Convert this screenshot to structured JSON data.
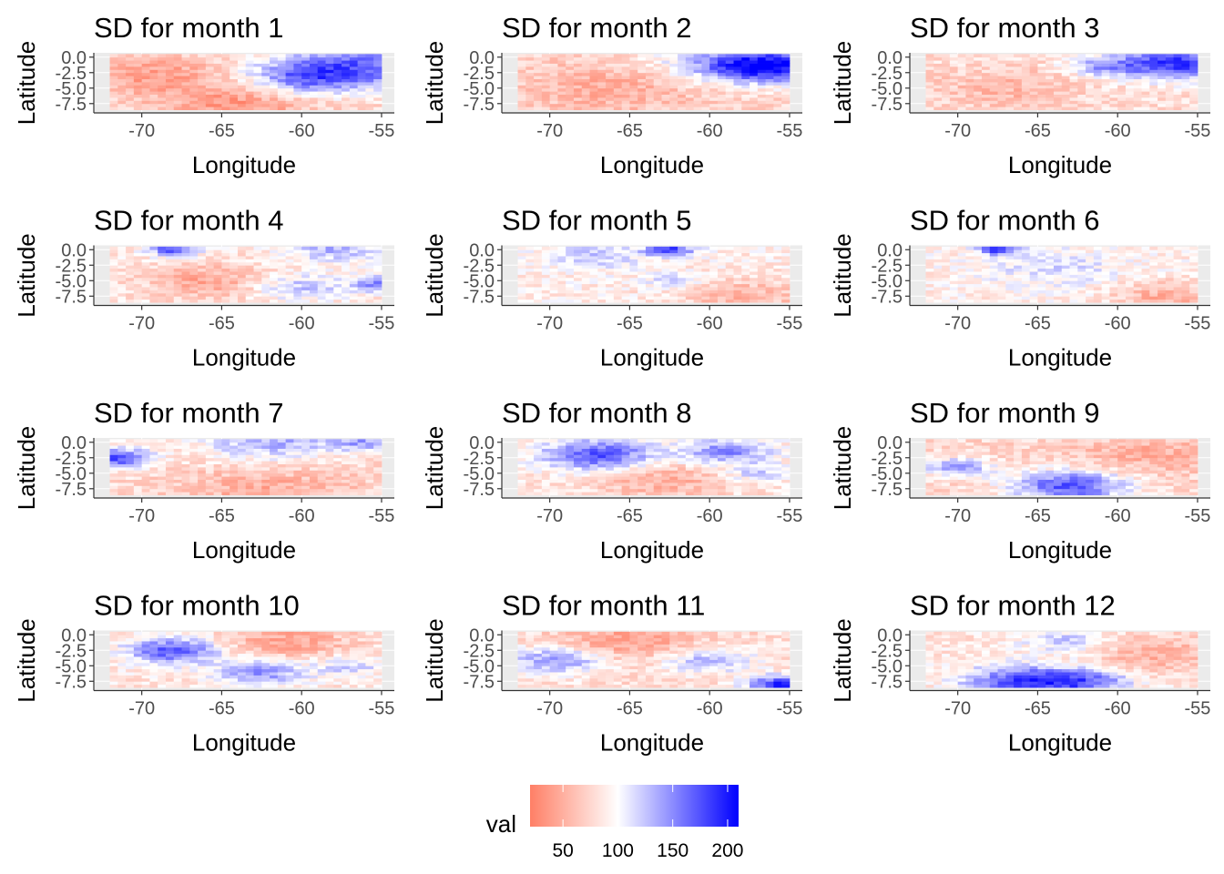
{
  "chart_data": {
    "type": "heatmap",
    "layout": "grid 4 rows x 3 columns",
    "colors": {
      "low": "#ff7f66",
      "mid": "#ffffff",
      "high": "#0000ff",
      "mid_value": 100
    },
    "grid": {
      "lon_from": -72,
      "lon_to": -55,
      "lat_from": -8.5,
      "lat_to": 0.5,
      "cell_size": 0.5,
      "cols": 34,
      "rows": 18
    },
    "xlim": [
      -73,
      -54.2
    ],
    "ylim": [
      -9,
      0.7
    ],
    "xticks": [
      "-70",
      "-65",
      "-60",
      "-55"
    ],
    "xtick_values": [
      -70,
      -65,
      -60,
      -55
    ],
    "yticks": [
      "0.0",
      "-2.5",
      "-5.0",
      "-7.5"
    ],
    "ytick_values": [
      0,
      -2.5,
      -5,
      -7.5
    ],
    "xlabel": "Longitude",
    "ylabel": "Latitude",
    "panels": [
      {
        "title": "SD for month 1",
        "base": 75,
        "blobs": [
          {
            "lon": -57,
            "lat": -1.5,
            "amp": 90,
            "r": 3.5
          },
          {
            "lon": -60,
            "lat": -3.5,
            "amp": 55,
            "r": 2.5
          },
          {
            "lon": -69,
            "lat": -3,
            "amp": -35,
            "r": 3
          },
          {
            "lon": -64,
            "lat": -7.5,
            "amp": -40,
            "r": 3
          }
        ]
      },
      {
        "title": "SD for month 2",
        "base": 75,
        "blobs": [
          {
            "lon": -56,
            "lat": -1.5,
            "amp": 110,
            "r": 2.5
          },
          {
            "lon": -59,
            "lat": -1,
            "amp": 60,
            "r": 3
          },
          {
            "lon": -66,
            "lat": -5,
            "amp": -25,
            "r": 4
          }
        ]
      },
      {
        "title": "SD for month 3",
        "base": 80,
        "blobs": [
          {
            "lon": -56.5,
            "lat": -1,
            "amp": 110,
            "r": 2.5
          },
          {
            "lon": -61,
            "lat": -1.5,
            "amp": 50,
            "r": 1.5
          },
          {
            "lon": -67,
            "lat": -5,
            "amp": -25,
            "r": 3
          }
        ]
      },
      {
        "title": "SD for month 4",
        "base": 85,
        "blobs": [
          {
            "lon": -68,
            "lat": 0,
            "amp": 95,
            "r": 1.0
          },
          {
            "lon": -55,
            "lat": -5.5,
            "amp": 75,
            "r": 1.2
          },
          {
            "lon": -58,
            "lat": 0,
            "amp": 45,
            "r": 2
          },
          {
            "lon": -66,
            "lat": -5,
            "amp": -40,
            "r": 2.5
          },
          {
            "lon": -60,
            "lat": -6,
            "amp": 40,
            "r": 2
          }
        ]
      },
      {
        "title": "SD for month 5",
        "base": 90,
        "blobs": [
          {
            "lon": -62.5,
            "lat": 0,
            "amp": 100,
            "r": 1.0
          },
          {
            "lon": -67,
            "lat": -1,
            "amp": 35,
            "r": 2
          },
          {
            "lon": -58,
            "lat": -7.5,
            "amp": -35,
            "r": 3
          },
          {
            "lon": -62,
            "lat": -5,
            "amp": 40,
            "r": 1.2
          }
        ]
      },
      {
        "title": "SD for month 6",
        "base": 90,
        "blobs": [
          {
            "lon": -67.5,
            "lat": 0,
            "amp": 95,
            "r": 0.8
          },
          {
            "lon": -57,
            "lat": -7.5,
            "amp": -40,
            "r": 2.5
          },
          {
            "lon": -64,
            "lat": -3,
            "amp": 25,
            "r": 3
          }
        ]
      },
      {
        "title": "SD for month 7",
        "base": 80,
        "blobs": [
          {
            "lon": -71.5,
            "lat": -2.5,
            "amp": 100,
            "r": 1.5
          },
          {
            "lon": -62,
            "lat": 0,
            "amp": 55,
            "r": 3
          },
          {
            "lon": -56,
            "lat": 0,
            "amp": 55,
            "r": 1.5
          },
          {
            "lon": -62,
            "lat": -7.5,
            "amp": -30,
            "r": 4
          }
        ]
      },
      {
        "title": "SD for month 8",
        "base": 85,
        "blobs": [
          {
            "lon": -67,
            "lat": -2,
            "amp": 90,
            "r": 2.5
          },
          {
            "lon": -59,
            "lat": -1.5,
            "amp": 65,
            "r": 2
          },
          {
            "lon": -57,
            "lat": -5,
            "amp": 35,
            "r": 1.5
          },
          {
            "lon": -63,
            "lat": -6,
            "amp": -35,
            "r": 3
          }
        ]
      },
      {
        "title": "SD for month 9",
        "base": 75,
        "blobs": [
          {
            "lon": -63,
            "lat": -7,
            "amp": 100,
            "r": 2.5
          },
          {
            "lon": -70,
            "lat": -4,
            "amp": 70,
            "r": 1.5
          },
          {
            "lon": -58,
            "lat": -2,
            "amp": -25,
            "r": 3
          }
        ]
      },
      {
        "title": "SD for month 10",
        "base": 85,
        "blobs": [
          {
            "lon": -68,
            "lat": -2.5,
            "amp": 90,
            "r": 2.0
          },
          {
            "lon": -62.5,
            "lat": -6,
            "amp": 60,
            "r": 2
          },
          {
            "lon": -61,
            "lat": -1,
            "amp": -40,
            "r": 3
          },
          {
            "lon": -57,
            "lat": -5,
            "amp": 40,
            "r": 1.5
          }
        ]
      },
      {
        "title": "SD for month 11",
        "base": 80,
        "blobs": [
          {
            "lon": -55.5,
            "lat": -8,
            "amp": 110,
            "r": 1.5
          },
          {
            "lon": -69.5,
            "lat": -4,
            "amp": 70,
            "r": 2
          },
          {
            "lon": -60,
            "lat": -4,
            "amp": 55,
            "r": 2
          },
          {
            "lon": -65,
            "lat": -1,
            "amp": -40,
            "r": 3
          }
        ]
      },
      {
        "title": "SD for month 12",
        "base": 85,
        "blobs": [
          {
            "lon": -66,
            "lat": -7.5,
            "amp": 95,
            "r": 2.5
          },
          {
            "lon": -62,
            "lat": -7.5,
            "amp": 70,
            "r": 2
          },
          {
            "lon": -63,
            "lat": -1,
            "amp": 40,
            "r": 2
          },
          {
            "lon": -58,
            "lat": -3,
            "amp": -35,
            "r": 3
          }
        ]
      }
    ],
    "legend": {
      "title": "val",
      "position": "bottom",
      "range": [
        20,
        210
      ],
      "ticks": [
        "50",
        "100",
        "150",
        "200"
      ],
      "tick_values": [
        50,
        100,
        150,
        200
      ]
    }
  }
}
